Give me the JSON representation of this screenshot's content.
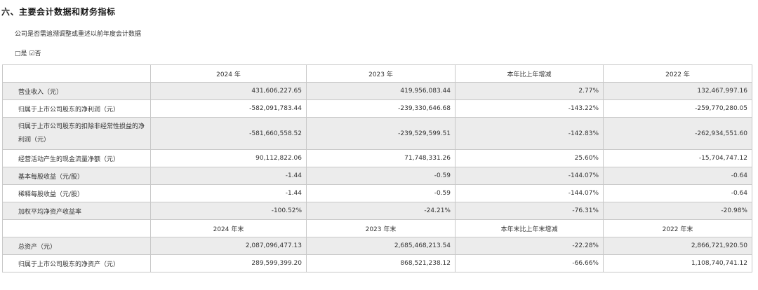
{
  "section_title": "六、主要会计数据和财务指标",
  "question": "公司是否需追溯调整或重述以前年度会计数据",
  "answer": {
    "yes_box": "□",
    "yes": "是",
    "no_box": "☑",
    "no": "否"
  },
  "table": {
    "header1": [
      "",
      "2024 年",
      "2023 年",
      "本年比上年增减",
      "2022 年"
    ],
    "rows1": [
      {
        "label": "营业收入（元）",
        "values": [
          "431,606,227.65",
          "419,956,083.44",
          "2.77%",
          "132,467,997.16"
        ]
      },
      {
        "label": "归属于上市公司股东的净利润（元）",
        "values": [
          "-582,091,783.44",
          "-239,330,646.68",
          "-143.22%",
          "-259,770,280.05"
        ]
      },
      {
        "label": "归属于上市公司股东的扣除非经常性损益的净利润（元）",
        "values": [
          "-581,660,558.52",
          "-239,529,599.51",
          "-142.83%",
          "-262,934,551.60"
        ]
      },
      {
        "label": "经营活动产生的现金流量净额（元）",
        "values": [
          "90,112,822.06",
          "71,748,331.26",
          "25.60%",
          "-15,704,747.12"
        ]
      },
      {
        "label": "基本每股收益（元/股）",
        "values": [
          "-1.44",
          "-0.59",
          "-144.07%",
          "-0.64"
        ]
      },
      {
        "label": "稀释每股收益（元/股）",
        "values": [
          "-1.44",
          "-0.59",
          "-144.07%",
          "-0.64"
        ]
      },
      {
        "label": "加权平均净资产收益率",
        "values": [
          "-100.52%",
          "-24.21%",
          "-76.31%",
          "-20.98%"
        ]
      }
    ],
    "header2": [
      "",
      "2024 年末",
      "2023 年末",
      "本年末比上年末增减",
      "2022 年末"
    ],
    "rows2": [
      {
        "label": "总资产（元）",
        "values": [
          "2,087,096,477.13",
          "2,685,468,213.54",
          "-22.28%",
          "2,866,721,920.50"
        ]
      },
      {
        "label": "归属于上市公司股东的净资产（元）",
        "values": [
          "289,599,399.20",
          "868,521,238.12",
          "-66.66%",
          "1,108,740,741.12"
        ]
      }
    ]
  }
}
